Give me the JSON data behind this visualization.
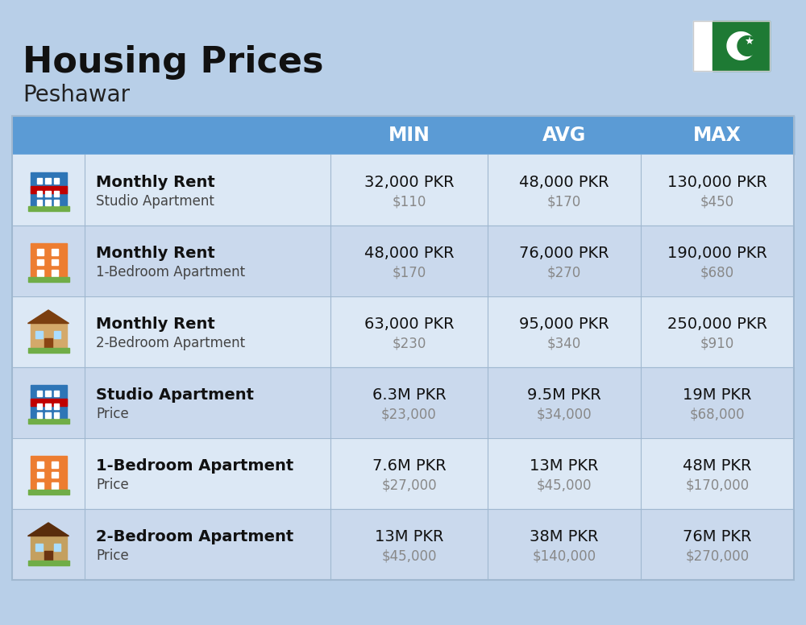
{
  "title": "Housing Prices",
  "subtitle": "Peshawar",
  "bg_color": "#b8cfe8",
  "header_bg": "#5b9bd5",
  "header_text_color": "#ffffff",
  "row_colors": [
    "#dce8f5",
    "#cad9ed"
  ],
  "col_headers": [
    "MIN",
    "AVG",
    "MAX"
  ],
  "rows": [
    {
      "label_bold": "Monthly Rent",
      "label_sub": "Studio Apartment",
      "min_pkr": "32,000 PKR",
      "min_usd": "$110",
      "avg_pkr": "48,000 PKR",
      "avg_usd": "$170",
      "max_pkr": "130,000 PKR",
      "max_usd": "$450",
      "icon_type": "studio_blue"
    },
    {
      "label_bold": "Monthly Rent",
      "label_sub": "1-Bedroom Apartment",
      "min_pkr": "48,000 PKR",
      "min_usd": "$170",
      "avg_pkr": "76,000 PKR",
      "avg_usd": "$270",
      "max_pkr": "190,000 PKR",
      "max_usd": "$680",
      "icon_type": "apartment_orange"
    },
    {
      "label_bold": "Monthly Rent",
      "label_sub": "2-Bedroom Apartment",
      "min_pkr": "63,000 PKR",
      "min_usd": "$230",
      "avg_pkr": "95,000 PKR",
      "avg_usd": "$340",
      "max_pkr": "250,000 PKR",
      "max_usd": "$910",
      "icon_type": "house_tan"
    },
    {
      "label_bold": "Studio Apartment",
      "label_sub": "Price",
      "min_pkr": "6.3M PKR",
      "min_usd": "$23,000",
      "avg_pkr": "9.5M PKR",
      "avg_usd": "$34,000",
      "max_pkr": "19M PKR",
      "max_usd": "$68,000",
      "icon_type": "studio_blue"
    },
    {
      "label_bold": "1-Bedroom Apartment",
      "label_sub": "Price",
      "min_pkr": "7.6M PKR",
      "min_usd": "$27,000",
      "avg_pkr": "13M PKR",
      "avg_usd": "$45,000",
      "max_pkr": "48M PKR",
      "max_usd": "$170,000",
      "icon_type": "apartment_orange"
    },
    {
      "label_bold": "2-Bedroom Apartment",
      "label_sub": "Price",
      "min_pkr": "13M PKR",
      "min_usd": "$45,000",
      "avg_pkr": "38M PKR",
      "avg_usd": "$140,000",
      "max_pkr": "76M PKR",
      "max_usd": "$270,000",
      "icon_type": "house_brown"
    }
  ],
  "divider_color": "#a0b8d0",
  "usd_color": "#888888",
  "pkr_text_color": "#111111",
  "label_bold_color": "#111111",
  "label_sub_color": "#444444",
  "flag_white": "#ffffff",
  "flag_green": "#1e7a34"
}
